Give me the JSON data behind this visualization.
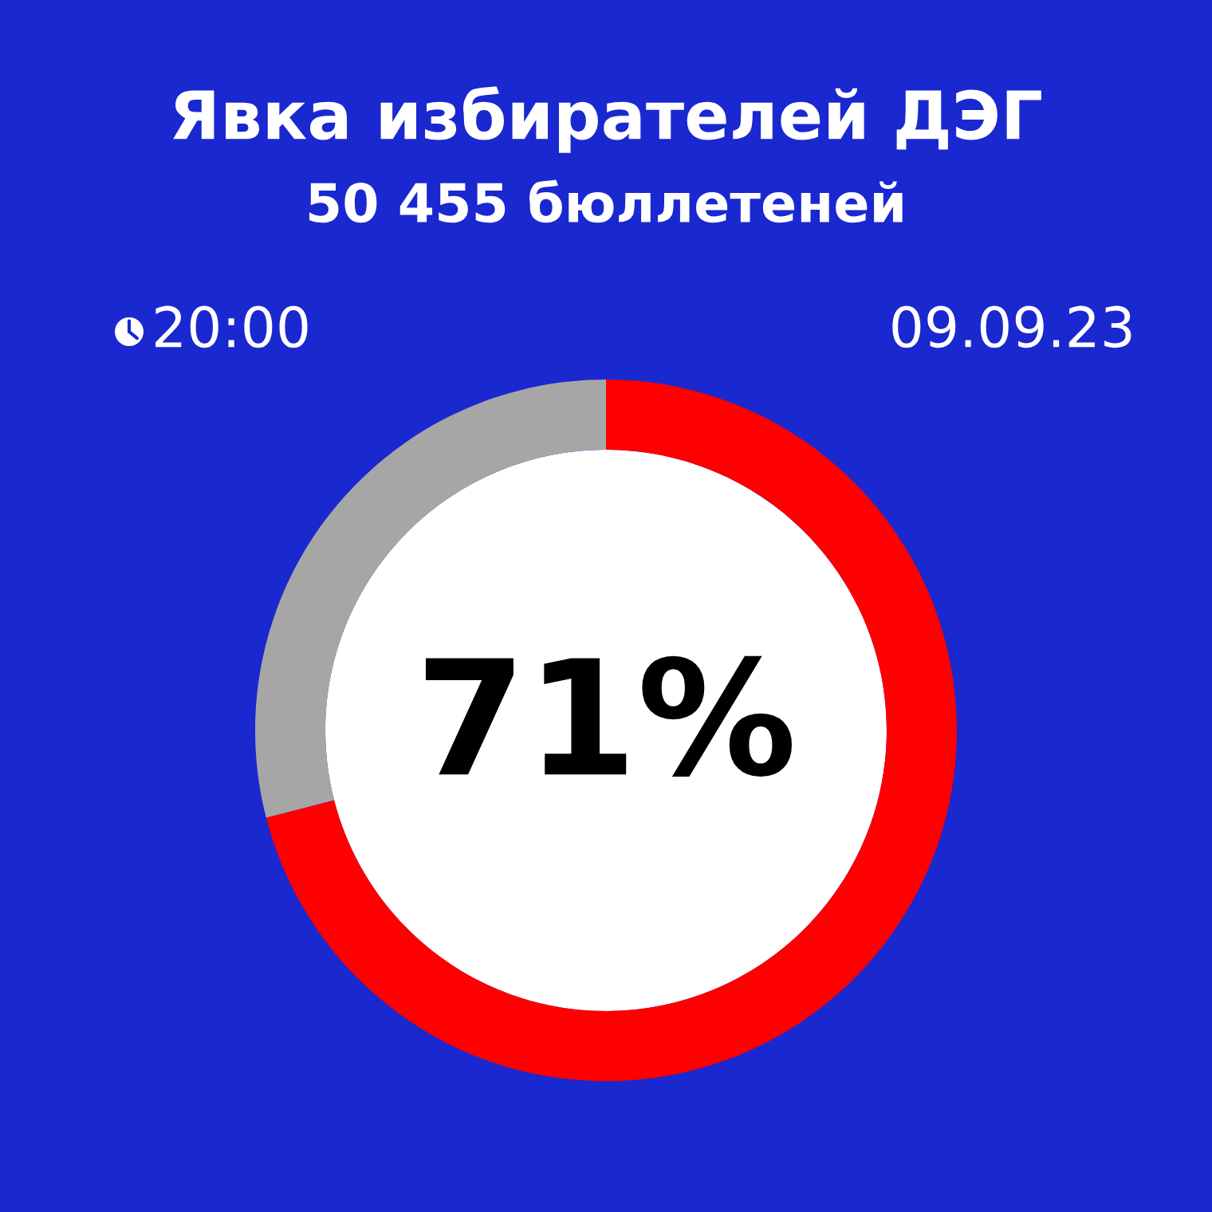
{
  "chart_data": {
    "type": "donut",
    "title": "Явка избирателей ДЭГ",
    "subtitle": "50 455 бюллетеней",
    "annotations": [
      "20:00",
      "09.09.23"
    ],
    "categories": [
      null,
      null
    ],
    "values": [
      71,
      29
    ],
    "colors": [
      "#ff0000",
      "#a6a6a6"
    ],
    "value_labels": [
      "71%",
      null
    ]
  }
}
